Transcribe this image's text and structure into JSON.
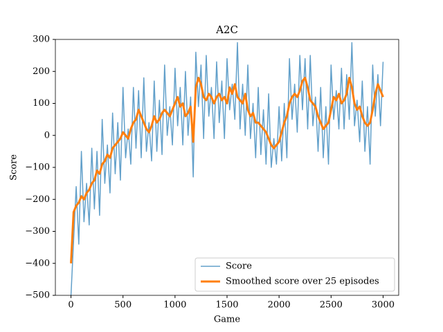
{
  "chart_data": {
    "type": "line",
    "title": "A2C",
    "xlabel": "Game",
    "ylabel": "Score",
    "xlim": [
      -150,
      3150
    ],
    "ylim": [
      -500,
      300
    ],
    "xticks": [
      0,
      500,
      1000,
      1500,
      2000,
      2500,
      3000
    ],
    "yticks": [
      300,
      200,
      100,
      0,
      {
        "value": -100,
        "label": "−100"
      },
      {
        "value": -200,
        "label": "−200"
      },
      {
        "value": -300,
        "label": "−300"
      },
      {
        "value": -400,
        "label": "−400"
      },
      {
        "value": -500,
        "label": "−500"
      }
    ],
    "grid": false,
    "legend": "lower right",
    "x": [
      0,
      25,
      50,
      75,
      100,
      125,
      150,
      175,
      200,
      225,
      250,
      275,
      300,
      325,
      350,
      375,
      400,
      425,
      450,
      475,
      500,
      525,
      550,
      575,
      600,
      625,
      650,
      675,
      700,
      725,
      750,
      775,
      800,
      825,
      850,
      875,
      900,
      925,
      950,
      975,
      1000,
      1025,
      1050,
      1075,
      1100,
      1125,
      1150,
      1175,
      1200,
      1225,
      1250,
      1275,
      1300,
      1325,
      1350,
      1375,
      1400,
      1425,
      1450,
      1475,
      1500,
      1525,
      1550,
      1575,
      1600,
      1625,
      1650,
      1675,
      1700,
      1725,
      1750,
      1775,
      1800,
      1825,
      1850,
      1875,
      1900,
      1925,
      1950,
      1975,
      2000,
      2025,
      2050,
      2075,
      2100,
      2125,
      2150,
      2175,
      2200,
      2225,
      2250,
      2275,
      2300,
      2325,
      2350,
      2375,
      2400,
      2425,
      2450,
      2475,
      2500,
      2525,
      2550,
      2575,
      2600,
      2625,
      2650,
      2675,
      2700,
      2725,
      2750,
      2775,
      2800,
      2825,
      2850,
      2875,
      2900,
      2925,
      2950,
      2975,
      3000
    ],
    "series": [
      {
        "name": "Score",
        "color": "#1f77b4",
        "opacity": 0.7,
        "width": 1.5,
        "values": [
          -500,
          -330,
          -160,
          -340,
          -50,
          -270,
          -150,
          -280,
          -40,
          -230,
          -50,
          -250,
          50,
          -150,
          -30,
          -180,
          70,
          -120,
          40,
          -140,
          150,
          -70,
          20,
          -90,
          150,
          -40,
          140,
          -70,
          180,
          -50,
          40,
          -80,
          170,
          -50,
          110,
          -60,
          220,
          0,
          90,
          -30,
          210,
          30,
          150,
          -30,
          200,
          0,
          120,
          -130,
          260,
          90,
          220,
          -10,
          250,
          60,
          150,
          -10,
          230,
          40,
          170,
          -10,
          240,
          80,
          160,
          50,
          290,
          20,
          160,
          0,
          220,
          -10,
          100,
          -70,
          150,
          -60,
          80,
          -90,
          130,
          -100,
          -10,
          -90,
          90,
          -80,
          100,
          -70,
          240,
          50,
          160,
          10,
          250,
          80,
          240,
          20,
          250,
          30,
          120,
          -50,
          150,
          -70,
          90,
          -90,
          220,
          50,
          140,
          20,
          210,
          20,
          190,
          50,
          290,
          30,
          110,
          -20,
          170,
          -50,
          90,
          -90,
          220,
          60,
          190,
          30,
          230
        ]
      },
      {
        "name": "Smoothed score over 25 episodes",
        "color": "#ff7f0e",
        "opacity": 1,
        "width": 3,
        "values": [
          -400,
          -240,
          -220,
          -210,
          -190,
          -200,
          -180,
          -170,
          -150,
          -140,
          -110,
          -120,
          -90,
          -80,
          -60,
          -70,
          -40,
          -30,
          -20,
          -10,
          10,
          0,
          -10,
          20,
          40,
          50,
          80,
          60,
          40,
          20,
          10,
          30,
          60,
          40,
          50,
          70,
          80,
          70,
          60,
          80,
          100,
          120,
          90,
          100,
          60,
          70,
          90,
          -20,
          150,
          180,
          160,
          120,
          110,
          130,
          120,
          100,
          120,
          130,
          110,
          120,
          100,
          150,
          130,
          160,
          120,
          110,
          100,
          130,
          80,
          60,
          70,
          40,
          40,
          30,
          20,
          10,
          -10,
          -30,
          -40,
          -30,
          -20,
          10,
          40,
          60,
          100,
          120,
          130,
          120,
          140,
          170,
          180,
          150,
          110,
          100,
          90,
          60,
          40,
          20,
          30,
          40,
          80,
          120,
          110,
          130,
          100,
          110,
          130,
          180,
          150,
          100,
          80,
          90,
          60,
          40,
          30,
          40,
          80,
          130,
          160,
          140,
          120
        ]
      }
    ]
  }
}
